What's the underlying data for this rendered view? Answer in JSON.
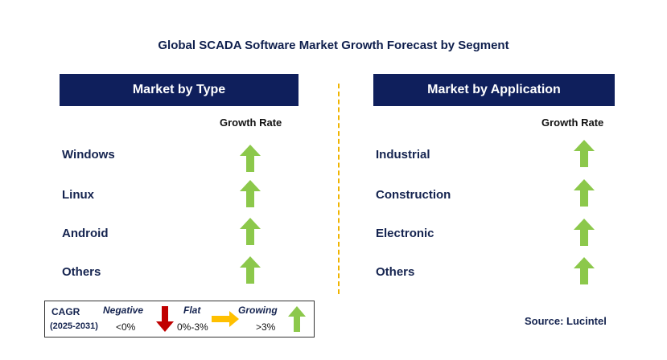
{
  "title": "Global SCADA Software Market Growth Forecast by Segment",
  "left_panel": {
    "header": "Market by Type",
    "growth_label": "Growth Rate",
    "rows": [
      "Windows",
      "Linux",
      "Android",
      "Others"
    ],
    "trend": [
      "growing",
      "growing",
      "growing",
      "growing"
    ]
  },
  "right_panel": {
    "header": "Market by Application",
    "growth_label": "Growth Rate",
    "rows": [
      "Industrial",
      "Construction",
      "Electronic",
      "Others"
    ],
    "trend": [
      "growing",
      "growing",
      "growing",
      "growing"
    ]
  },
  "legend": {
    "cagr": "CAGR",
    "period": "(2025-2031)",
    "negative": "Negative",
    "negative_range": "<0%",
    "flat": "Flat",
    "flat_range": "0%-3%",
    "growing": "Growing",
    "growing_range": ">3%"
  },
  "source": "Source: Lucintel",
  "colors": {
    "header_bg": "#0f1f5c",
    "growing_arrow": "#8cc84b",
    "negative_arrow": "#c00000",
    "flat_arrow": "#ffc000",
    "divider": "#f0b400"
  }
}
